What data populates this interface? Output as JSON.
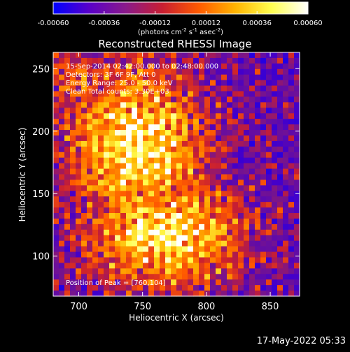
{
  "chart_data": {
    "type": "heatmap",
    "title": "Reconstructed RHESSI Image",
    "xlabel": "Heliocentric X (arcsec)",
    "ylabel": "Heliocentric Y (arcsec)",
    "xlim": [
      680,
      873
    ],
    "ylim": [
      68,
      263
    ],
    "xticks": [
      700,
      750,
      800,
      850
    ],
    "yticks": [
      100,
      150,
      200,
      250
    ],
    "annotations": [
      "15-Sep-2014 02:42:00.000 to 02:48:00.000",
      "Detectors: 3F 6F 9F, Att 0",
      "Energy Range: 25.0 - 50.0 keV",
      "Clean    Total counts: 3.30E+03"
    ],
    "peak_label": "Position of Peak = [760,104]",
    "peak": [
      760,
      104
    ],
    "colorbar": {
      "range": [
        -0.0006,
        0.0006
      ],
      "ticks": [
        "-0.00060",
        "-0.00036",
        "-0.00012",
        "0.00012",
        "0.00036",
        "0.00060"
      ],
      "unit_html": "(photons cm<sup>-2</sup> s<sup>-1</sup> asec<sup>-2</sup>)",
      "colors": [
        "#0000ff",
        "#5a00c8",
        "#8a1a8a",
        "#c81e32",
        "#ff5a00",
        "#ffb400",
        "#ffff50",
        "#ffffff"
      ]
    }
  },
  "footer": {
    "date": "17-May-2022 05:33"
  }
}
